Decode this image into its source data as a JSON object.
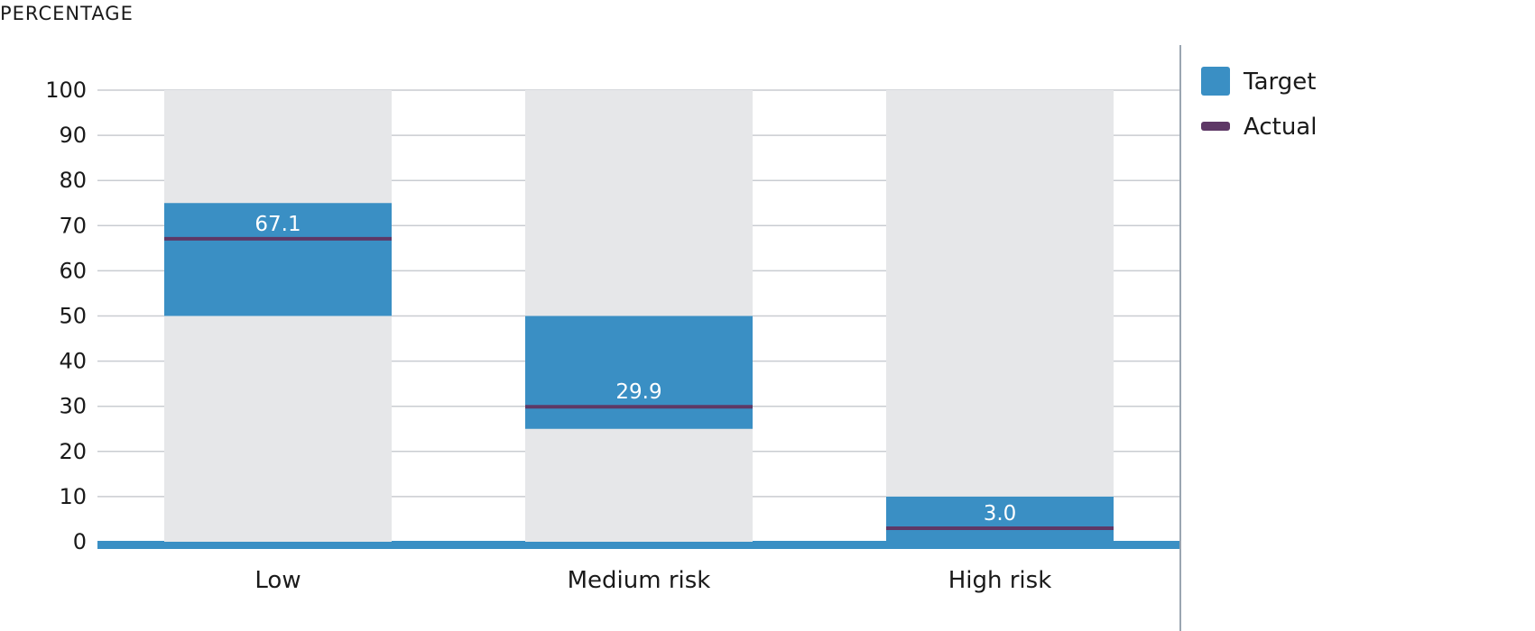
{
  "chart_data": {
    "type": "bar",
    "ylabel": "PERCENTAGE",
    "ylim": [
      0,
      100
    ],
    "yticks": [
      0,
      10,
      20,
      30,
      40,
      50,
      60,
      70,
      80,
      90,
      100
    ],
    "categories": [
      "Low",
      "Medium risk",
      "High risk"
    ],
    "series": [
      {
        "name": "Target",
        "ranges": [
          [
            50,
            75
          ],
          [
            25,
            50
          ],
          [
            0,
            10
          ]
        ]
      },
      {
        "name": "Actual",
        "values": [
          67.1,
          29.9,
          3.0
        ]
      }
    ],
    "data_labels": [
      "67.1",
      "29.9",
      "3.0"
    ],
    "grid": true,
    "legend": "right",
    "colors": {
      "target": "#3a8fc4",
      "actual": "#5e3866",
      "background_band": "#e6e7e9",
      "grid": "#c9ccd1",
      "baseline": "#3a8fc4",
      "divider": "#9aa5b1"
    }
  }
}
